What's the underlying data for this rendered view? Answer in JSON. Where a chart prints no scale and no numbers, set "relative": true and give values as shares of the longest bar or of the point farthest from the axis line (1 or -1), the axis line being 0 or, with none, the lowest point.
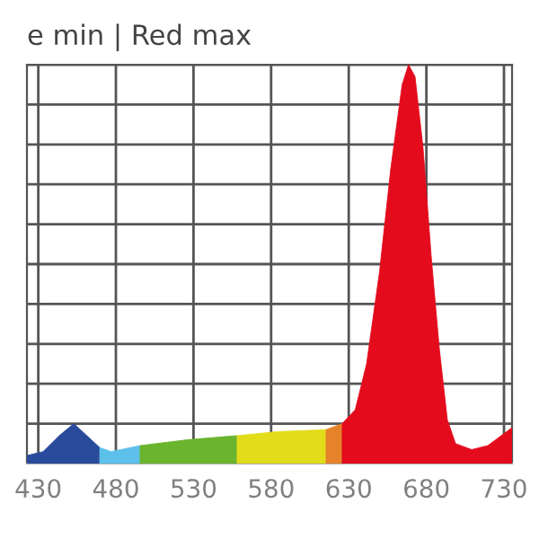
{
  "chart_data": {
    "type": "area",
    "title": "e min | Red max",
    "relative": true,
    "series": [
      {
        "color": "#2a4a9c",
        "x": [
          422.7,
          433.1,
          443.5,
          452.9,
          461.3,
          469.6
        ],
        "values": [
          0.02,
          0.03,
          0.07,
          0.1,
          0.07,
          0.04
        ]
      },
      {
        "color": "#5cc0ea",
        "x": [
          469.6,
          476.9,
          495.6
        ],
        "values": [
          0.04,
          0.03,
          0.045
        ]
      },
      {
        "color": "#6ab42e",
        "x": [
          495.6,
          526.9,
          558.1
        ],
        "values": [
          0.045,
          0.06,
          0.07
        ]
      },
      {
        "color": "#e2dc1a",
        "x": [
          558.1,
          584.2,
          615.4
        ],
        "values": [
          0.07,
          0.08,
          0.085
        ]
      },
      {
        "color": "#e6822a",
        "x": [
          615.4,
          625.8
        ],
        "values": [
          0.085,
          0.1
        ]
      },
      {
        "color": "#e30b1c",
        "x": [
          625.8,
          634.2,
          641.5,
          649.8,
          657.1,
          664.4,
          668.5,
          672.7,
          677.9,
          683.1,
          688.3,
          693.5,
          698.8,
          709.2,
          719.6,
          730.0,
          735.2
        ],
        "values": [
          0.1,
          0.135,
          0.25,
          0.48,
          0.74,
          0.95,
          1.0,
          0.97,
          0.79,
          0.52,
          0.29,
          0.11,
          0.05,
          0.035,
          0.045,
          0.075,
          0.09
        ]
      }
    ],
    "xlim": [
      422.7,
      735.2
    ],
    "xticks": [
      430,
      480,
      530,
      580,
      630,
      680,
      730
    ],
    "grid": true
  }
}
